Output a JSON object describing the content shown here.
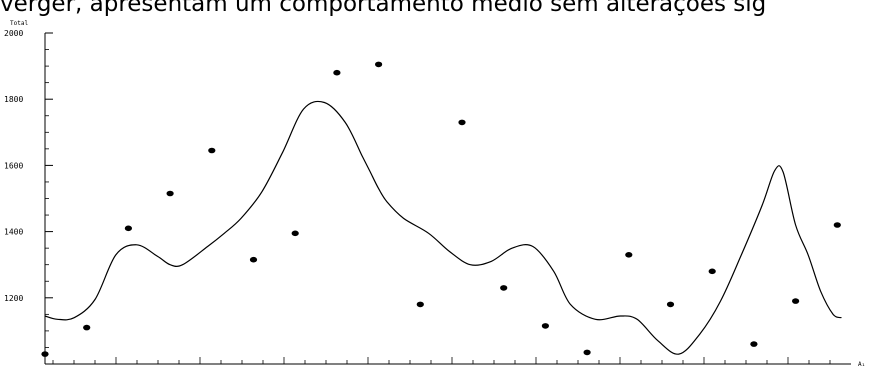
{
  "page": {
    "caption": "verger, apresentam um comportamento médio sem alterações sig"
  },
  "chart_data": {
    "type": "scatter",
    "title": "",
    "ylabel": "Total",
    "xlabel": "A₁",
    "ylim": [
      1000,
      2000
    ],
    "yticks": [
      2000,
      1800,
      1600,
      1400,
      1200
    ],
    "xlim": [
      0,
      20
    ],
    "grid": false,
    "colors": {
      "points": "#000000",
      "line": "#000000",
      "axis": "#000000"
    },
    "series": [
      {
        "kind": "points",
        "x": [
          1,
          2,
          3,
          4,
          5,
          6,
          7,
          8,
          9,
          10,
          11,
          12,
          13,
          14,
          15,
          16,
          17,
          18,
          19,
          20
        ],
        "y": [
          1030,
          1110,
          1410,
          1515,
          1645,
          1315,
          1395,
          1880,
          1905,
          1180,
          1730,
          1230,
          1115,
          1035,
          1330,
          1180,
          1280,
          1060,
          1190,
          1420
        ]
      },
      {
        "kind": "smooth-line",
        "x": [
          1.0,
          1.3,
          1.7,
          2.2,
          2.7,
          3.2,
          3.7,
          4.0,
          4.3,
          4.9,
          5.3,
          5.7,
          6.2,
          6.7,
          7.2,
          7.7,
          8.2,
          8.6,
          8.8,
          9.0,
          9.2,
          9.6,
          10.2,
          10.7,
          11.2,
          11.7,
          12.2,
          12.7,
          13.2,
          13.6,
          14.2,
          14.8,
          15.2,
          15.7,
          16.2,
          16.7,
          17.2,
          17.7,
          18.2,
          18.5,
          18.7,
          19.0,
          19.3,
          19.6,
          19.9,
          20.1
        ],
        "y": [
          1145,
          1135,
          1140,
          1195,
          1330,
          1360,
          1325,
          1300,
          1300,
          1355,
          1395,
          1440,
          1520,
          1640,
          1770,
          1790,
          1730,
          1630,
          1580,
          1530,
          1490,
          1440,
          1395,
          1340,
          1300,
          1310,
          1350,
          1355,
          1280,
          1180,
          1135,
          1145,
          1135,
          1070,
          1030,
          1090,
          1190,
          1330,
          1480,
          1585,
          1580,
          1420,
          1330,
          1220,
          1150,
          1140
        ]
      }
    ]
  }
}
